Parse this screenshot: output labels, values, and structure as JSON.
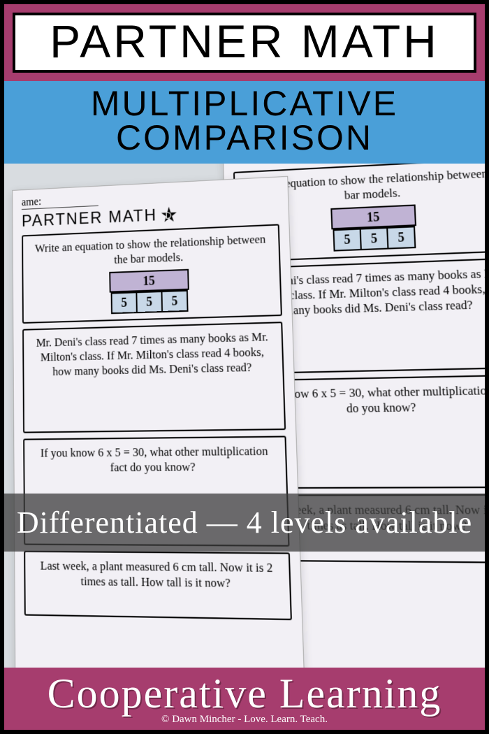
{
  "colors": {
    "magenta": "#a63d6e",
    "blue": "#4a9fd8",
    "sheet_bg": "#f2f0f5",
    "bar_top": "#c0b3d4",
    "bar_unit": "#c8d8e8",
    "overlay": "rgba(60,60,60,0.75)",
    "border": "#000000"
  },
  "title": "PARTNER MATH",
  "subtitle_line1": "MULTIPLICATIVE",
  "subtitle_line2": "COMPARISON",
  "overlay": "Differentiated — 4 levels available",
  "bottom": "Cooperative Learning",
  "credit": "© Dawn Mincher - Love. Learn. Teach.",
  "worksheet": {
    "name_label": "ame:",
    "header": "PARTNER MATH",
    "star_letter": "D",
    "q1": "Write an equation to show the relationship between the bar models.",
    "bar_top_value": "15",
    "bar_unit_value": "5",
    "bar_unit_count": 3,
    "q2": "Mr. Deni's class read 7 times as many books as Mr. Milton's class. If Mr. Milton's class read 4 books, how many books did Ms. Deni's class read?",
    "q3": "If you know 6 x 5 = 30, what other multiplication fact do you know?",
    "q4": "Last week, a plant measured 6 cm tall. Now it is 2 times as tall. How tall is it now?"
  }
}
